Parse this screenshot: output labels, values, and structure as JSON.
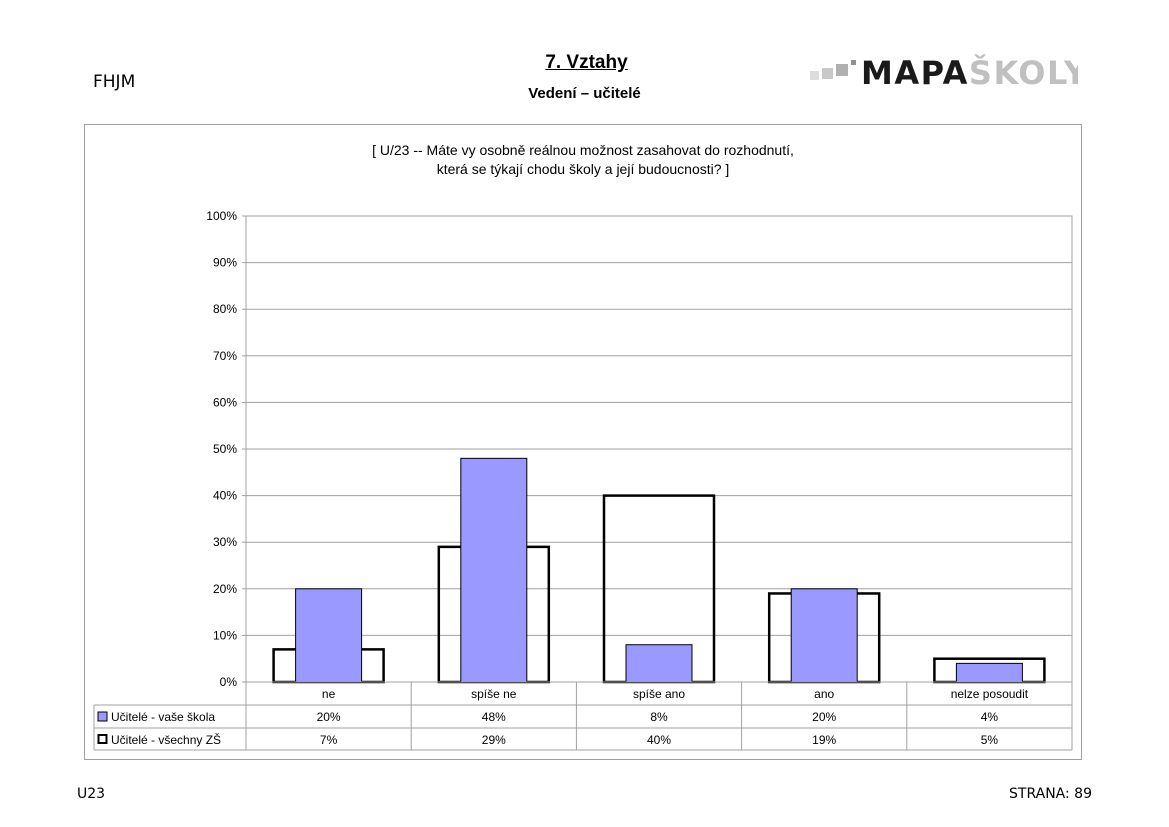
{
  "header": {
    "school_code": "FHJM",
    "section_title": "7. Vztahy",
    "section_subtitle": "Vedení – učitelé",
    "logo_dark": "MAPA",
    "logo_light": "ŠKOLY"
  },
  "footer": {
    "question_code": "U23",
    "page_label": "STRANA: 89"
  },
  "colors": {
    "series_fill": "#9999ff",
    "outline": "#000000",
    "grid": "#a0a0a0",
    "logo_dark": "#1a1a1a",
    "logo_light": "#c0c0c0"
  },
  "chart_data": {
    "type": "bar",
    "title_line1": "[ U/23 -- Máte vy osobně reálnou možnost zasahovat do rozhodnutí,",
    "title_line2": "která se týkají chodu školy a její budoucnosti? ]",
    "categories": [
      "ne",
      "spíše ne",
      "spíše ano",
      "ano",
      "nelze posoudit"
    ],
    "series": [
      {
        "name": "Učitelé - vaše škola",
        "values": [
          20,
          48,
          8,
          20,
          4
        ],
        "labels": [
          "20%",
          "48%",
          "8%",
          "20%",
          "4%"
        ],
        "style": "filled"
      },
      {
        "name": "Učitelé - všechny ZŠ",
        "values": [
          7,
          29,
          40,
          19,
          5
        ],
        "labels": [
          "7%",
          "29%",
          "40%",
          "19%",
          "5%"
        ],
        "style": "outline"
      }
    ],
    "ylim": [
      0,
      100
    ],
    "yticks": [
      "0%",
      "10%",
      "20%",
      "30%",
      "40%",
      "50%",
      "60%",
      "70%",
      "80%",
      "90%",
      "100%"
    ],
    "grid": true,
    "legend": "data-table"
  }
}
